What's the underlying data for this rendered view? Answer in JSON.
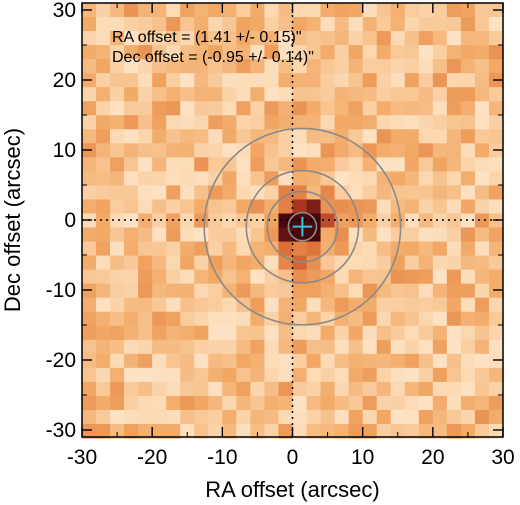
{
  "chart_data": {
    "type": "heatmap",
    "title": "",
    "xlabel": "RA offset (arcsec)",
    "ylabel": "Dec offset (arcsec)",
    "xlim": [
      -30,
      30
    ],
    "ylim": [
      -31,
      31
    ],
    "xticks": [
      -30,
      -20,
      -10,
      0,
      10,
      20,
      30
    ],
    "yticks": [
      -30,
      -20,
      -10,
      0,
      10,
      20,
      30
    ],
    "xtick_labels": [
      "-30",
      "-20",
      "-10",
      "0",
      "10",
      "20",
      "30"
    ],
    "ytick_labels": [
      "-30",
      "-20",
      "-10",
      "0",
      "10",
      "20",
      "30"
    ],
    "grid": false,
    "colormap": "white-orange-dark-red",
    "annotations": [
      "RA offset = (1.41 +/- 0.15)\"",
      "Dec offset = (-0.95 +/- 0.14)\""
    ],
    "reference_lines": {
      "x": 0,
      "y": 0,
      "style": "dotted"
    },
    "source_position": {
      "x": 1.41,
      "y": -0.95
    },
    "circle_radii": [
      2,
      5,
      8,
      14
    ],
    "colors": {
      "circle": "#8a8a8a",
      "marker": "#35c6d8",
      "low": "#ffffff",
      "mid": "#f0a050",
      "high": "#5a0810"
    }
  }
}
